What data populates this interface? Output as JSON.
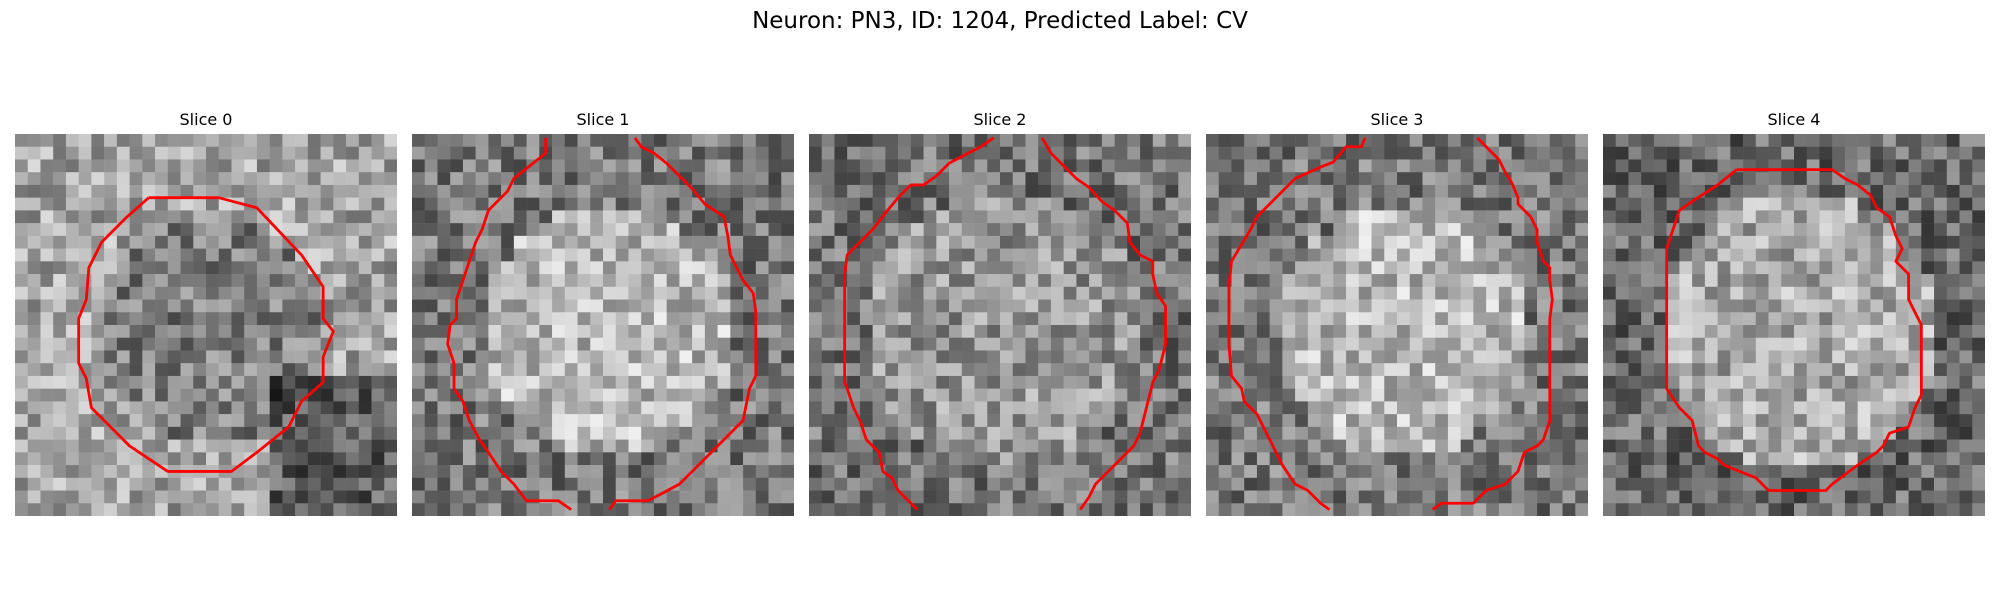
{
  "figure": {
    "title": "Neuron: PN3, ID: 1204, Predicted Label: CV",
    "contour_color": "#ff0000",
    "panels": [
      {
        "label": "Slice 0"
      },
      {
        "label": "Slice 1"
      },
      {
        "label": "Slice 2"
      },
      {
        "label": "Slice 3"
      },
      {
        "label": "Slice 4"
      }
    ]
  }
}
